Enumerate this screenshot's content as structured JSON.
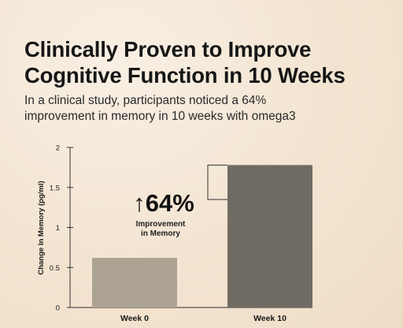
{
  "header": {
    "title_line1": "Clinically Proven to Improve",
    "title_line2": "Cognitive Function in 10 Weeks",
    "subtitle_line1": "In a clinical study, participants noticed a 64%",
    "subtitle_line2": "improvement in memory in 10 weeks with omega3"
  },
  "chart_data": {
    "type": "bar",
    "categories": [
      "Week 0",
      "Week 10"
    ],
    "values": [
      0.62,
      1.78
    ],
    "ylabel": "Change In Memory (pg/ml)",
    "ylim": [
      0,
      2
    ],
    "yticks": [
      "0",
      "0.5",
      "1",
      "1.5",
      "2"
    ],
    "ytick_values": [
      0,
      0.5,
      1,
      1.5,
      2
    ],
    "bar_colors": [
      "#aca393",
      "#6f6a62"
    ],
    "callout": {
      "arrow": "↑",
      "value": "64%",
      "label_line1": "Improvement",
      "label_line2": "in Memory"
    }
  }
}
